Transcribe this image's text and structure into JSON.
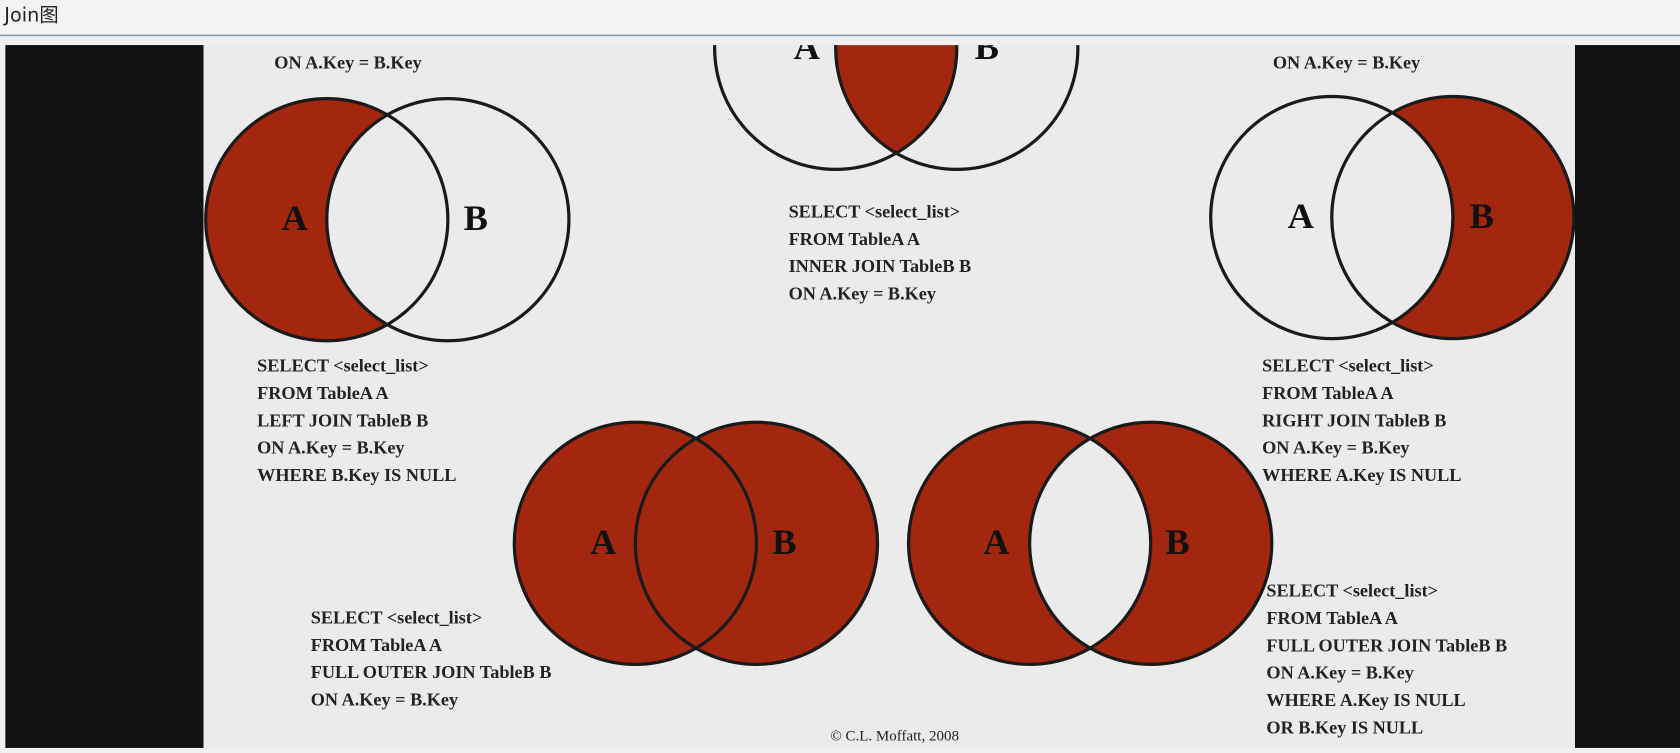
{
  "header": {
    "title": "Join图"
  },
  "diagrams": [
    {
      "top_text": "ON A.Key = B.Key",
      "labels": [
        "A",
        "B"
      ],
      "sql": [
        "SELECT <select_list>",
        "FROM TableA A",
        "LEFT JOIN TableB B",
        "ON A.Key = B.Key",
        "WHERE B.Key IS NULL"
      ]
    },
    {
      "labels": [
        "A",
        "B"
      ],
      "sql": [
        "SELECT <select_list>",
        "FROM TableA A",
        "INNER JOIN TableB B",
        "ON A.Key = B.Key"
      ]
    },
    {
      "top_text": "ON A.Key = B.Key",
      "labels": [
        "A",
        "B"
      ],
      "sql": [
        "SELECT <select_list>",
        "FROM TableA A",
        "RIGHT JOIN TableB B",
        "ON A.Key = B.Key",
        "WHERE A.Key IS NULL"
      ]
    },
    {
      "labels": [
        "A",
        "B"
      ],
      "sql": [
        "SELECT <select_list>",
        "FROM TableA A",
        "FULL OUTER JOIN TableB B",
        "ON A.Key = B.Key"
      ]
    },
    {
      "labels": [
        "A",
        "B"
      ],
      "sql": [
        "SELECT <select_list>",
        "FROM TableA A",
        "FULL OUTER JOIN TableB B",
        "ON A.Key = B.Key",
        "WHERE A.Key IS NULL",
        "OR B.Key IS NULL"
      ]
    }
  ],
  "copyright": "© C.L. Moffatt, 2008"
}
